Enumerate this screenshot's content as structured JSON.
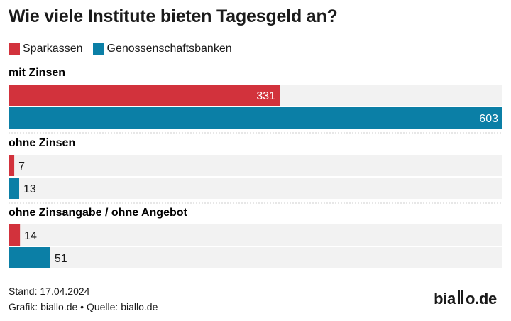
{
  "title": "Wie viele Institute bieten Tagesgeld an?",
  "colors": {
    "sparkassen": "#d2323c",
    "genossenschaftsbanken": "#0b7fa6",
    "track": "#f2f2f2"
  },
  "chart_data": {
    "type": "bar",
    "orientation": "horizontal",
    "title": "Wie viele Institute bieten Tagesgeld an?",
    "categories": [
      "mit Zinsen",
      "ohne Zinsen",
      "ohne Zinsangabe / ohne Angebot"
    ],
    "series": [
      {
        "name": "Sparkassen",
        "values": [
          331,
          7,
          14
        ]
      },
      {
        "name": "Genossenschaftsbanken",
        "values": [
          603,
          13,
          51
        ]
      }
    ],
    "xlim": [
      0,
      603
    ],
    "legend_position": "top-left",
    "grid": false
  },
  "footer": {
    "stand": "Stand: 17.04.2024",
    "credits": "Grafik: biallo.de • Quelle: biallo.de"
  },
  "logo": {
    "left": "bia",
    "right": "o.de"
  }
}
